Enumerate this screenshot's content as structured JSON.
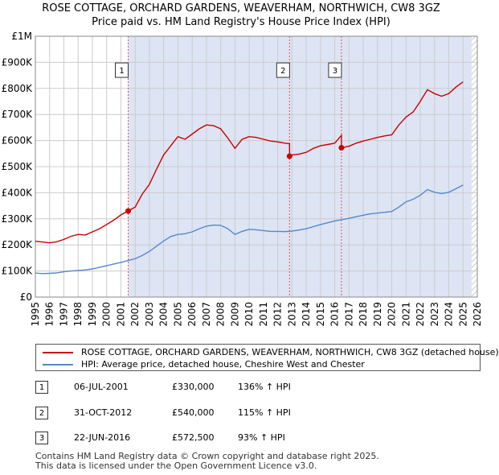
{
  "chart_data": {
    "type": "line",
    "title_line1": "ROSE COTTAGE, ORCHARD GARDENS, WEAVERHAM, NORTHWICH, CW8 3GZ",
    "title_line2": "Price paid vs. HM Land Registry's House Price Index (HPI)",
    "x_range": [
      1995,
      2026
    ],
    "y_range": [
      0,
      1000000
    ],
    "x_ticks": [
      "1995",
      "1996",
      "1997",
      "1998",
      "1999",
      "2000",
      "2001",
      "2002",
      "2003",
      "2004",
      "2005",
      "2006",
      "2007",
      "2008",
      "2009",
      "2010",
      "2011",
      "2012",
      "2013",
      "2014",
      "2015",
      "2016",
      "2017",
      "2018",
      "2019",
      "2020",
      "2021",
      "2022",
      "2023",
      "2024",
      "2025",
      "2026"
    ],
    "y_ticks": [
      {
        "value": 0,
        "label": "£0"
      },
      {
        "value": 100000,
        "label": "£100K"
      },
      {
        "value": 200000,
        "label": "£200K"
      },
      {
        "value": 300000,
        "label": "£300K"
      },
      {
        "value": 400000,
        "label": "£400K"
      },
      {
        "value": 500000,
        "label": "£500K"
      },
      {
        "value": 600000,
        "label": "£600K"
      },
      {
        "value": 700000,
        "label": "£700K"
      },
      {
        "value": 800000,
        "label": "£800K"
      },
      {
        "value": 900000,
        "label": "£900K"
      },
      {
        "value": 1000000,
        "label": "£1M"
      }
    ],
    "shaded_range": [
      2001.51,
      2025.6
    ],
    "hatch_from": 2025.6,
    "series": [
      {
        "name": "ROSE COTTAGE, ORCHARD GARDENS, WEAVERHAM, NORTHWICH, CW8 3GZ (detached house)",
        "color": "#cc0000",
        "points": [
          [
            1995,
            214000
          ],
          [
            1995.5,
            211000
          ],
          [
            1996,
            208000
          ],
          [
            1996.5,
            212000
          ],
          [
            1997,
            221000
          ],
          [
            1997.5,
            233000
          ],
          [
            1998,
            240000
          ],
          [
            1998.5,
            238000
          ],
          [
            1999,
            250000
          ],
          [
            1999.5,
            262000
          ],
          [
            2000,
            278000
          ],
          [
            2000.5,
            295000
          ],
          [
            2001,
            315000
          ],
          [
            2001.51,
            330000
          ],
          [
            2002,
            345000
          ],
          [
            2002.5,
            395000
          ],
          [
            2003,
            432000
          ],
          [
            2003.5,
            490000
          ],
          [
            2004,
            545000
          ],
          [
            2004.5,
            580000
          ],
          [
            2005,
            615000
          ],
          [
            2005.5,
            605000
          ],
          [
            2006,
            625000
          ],
          [
            2006.5,
            645000
          ],
          [
            2007,
            660000
          ],
          [
            2007.5,
            657000
          ],
          [
            2008,
            645000
          ],
          [
            2008.5,
            610000
          ],
          [
            2009,
            570000
          ],
          [
            2009.5,
            605000
          ],
          [
            2010,
            615000
          ],
          [
            2010.5,
            612000
          ],
          [
            2011,
            605000
          ],
          [
            2011.5,
            598000
          ],
          [
            2012,
            595000
          ],
          [
            2012.5,
            590000
          ],
          [
            2012.83,
            588000
          ],
          [
            2012.831,
            540000
          ],
          [
            2013,
            545000
          ],
          [
            2013.5,
            548000
          ],
          [
            2014,
            555000
          ],
          [
            2014.5,
            570000
          ],
          [
            2015,
            580000
          ],
          [
            2015.5,
            585000
          ],
          [
            2016,
            590000
          ],
          [
            2016.47,
            620000
          ],
          [
            2016.471,
            572500
          ],
          [
            2017,
            578000
          ],
          [
            2017.5,
            590000
          ],
          [
            2018,
            598000
          ],
          [
            2018.5,
            605000
          ],
          [
            2019,
            612000
          ],
          [
            2019.5,
            618000
          ],
          [
            2020,
            622000
          ],
          [
            2020.5,
            660000
          ],
          [
            2021,
            690000
          ],
          [
            2021.5,
            710000
          ],
          [
            2022,
            750000
          ],
          [
            2022.5,
            795000
          ],
          [
            2023,
            780000
          ],
          [
            2023.5,
            770000
          ],
          [
            2024,
            780000
          ],
          [
            2024.5,
            805000
          ],
          [
            2025,
            825000
          ]
        ]
      },
      {
        "name": "HPI: Average price, detached house, Cheshire West and Chester",
        "color": "#5588cc",
        "points": [
          [
            1995,
            92000
          ],
          [
            1995.5,
            90000
          ],
          [
            1996,
            91000
          ],
          [
            1996.5,
            93000
          ],
          [
            1997,
            97000
          ],
          [
            1997.5,
            100000
          ],
          [
            1998,
            102000
          ],
          [
            1998.5,
            104000
          ],
          [
            1999,
            108000
          ],
          [
            1999.5,
            114000
          ],
          [
            2000,
            120000
          ],
          [
            2000.5,
            127000
          ],
          [
            2001,
            133000
          ],
          [
            2001.51,
            140000
          ],
          [
            2002,
            147000
          ],
          [
            2002.5,
            160000
          ],
          [
            2003,
            175000
          ],
          [
            2003.5,
            195000
          ],
          [
            2004,
            215000
          ],
          [
            2004.5,
            232000
          ],
          [
            2005,
            240000
          ],
          [
            2005.5,
            243000
          ],
          [
            2006,
            250000
          ],
          [
            2006.5,
            262000
          ],
          [
            2007,
            272000
          ],
          [
            2007.5,
            276000
          ],
          [
            2008,
            275000
          ],
          [
            2008.5,
            262000
          ],
          [
            2009,
            240000
          ],
          [
            2009.5,
            252000
          ],
          [
            2010,
            260000
          ],
          [
            2010.5,
            258000
          ],
          [
            2011,
            255000
          ],
          [
            2011.5,
            252000
          ],
          [
            2012,
            252000
          ],
          [
            2012.5,
            251000
          ],
          [
            2013,
            253000
          ],
          [
            2013.5,
            257000
          ],
          [
            2014,
            262000
          ],
          [
            2014.5,
            270000
          ],
          [
            2015,
            278000
          ],
          [
            2015.5,
            285000
          ],
          [
            2016,
            292000
          ],
          [
            2016.5,
            297000
          ],
          [
            2017,
            302000
          ],
          [
            2017.5,
            308000
          ],
          [
            2018,
            314000
          ],
          [
            2018.5,
            319000
          ],
          [
            2019,
            322000
          ],
          [
            2019.5,
            325000
          ],
          [
            2020,
            328000
          ],
          [
            2020.5,
            345000
          ],
          [
            2021,
            365000
          ],
          [
            2021.5,
            375000
          ],
          [
            2022,
            390000
          ],
          [
            2022.5,
            412000
          ],
          [
            2023,
            402000
          ],
          [
            2023.5,
            397000
          ],
          [
            2024,
            402000
          ],
          [
            2024.5,
            415000
          ],
          [
            2025,
            430000
          ]
        ]
      }
    ],
    "sales": [
      {
        "id": "1",
        "x": 2001.51,
        "y": 330000,
        "label_y": 870000
      },
      {
        "id": "2",
        "x": 2012.83,
        "y": 540000,
        "label_y": 870000
      },
      {
        "id": "3",
        "x": 2016.47,
        "y": 572500,
        "label_y": 870000
      }
    ]
  },
  "legend": {
    "property": "ROSE COTTAGE, ORCHARD GARDENS, WEAVERHAM, NORTHWICH, CW8 3GZ (detached house)",
    "hpi": "HPI: Average price, detached house, Cheshire West and Chester",
    "property_color": "#cc0000",
    "hpi_color": "#5588cc"
  },
  "sales_table": [
    {
      "num": "1",
      "date": "06-JUL-2001",
      "price": "£330,000",
      "hpi": "136% ↑ HPI"
    },
    {
      "num": "2",
      "date": "31-OCT-2012",
      "price": "£540,000",
      "hpi": "115% ↑ HPI"
    },
    {
      "num": "3",
      "date": "22-JUN-2016",
      "price": "£572,500",
      "hpi": "93% ↑ HPI"
    }
  ],
  "footer": {
    "line1": "Contains HM Land Registry data © Crown copyright and database right 2025.",
    "line2": "This data is licensed under the Open Government Licence v3.0."
  }
}
